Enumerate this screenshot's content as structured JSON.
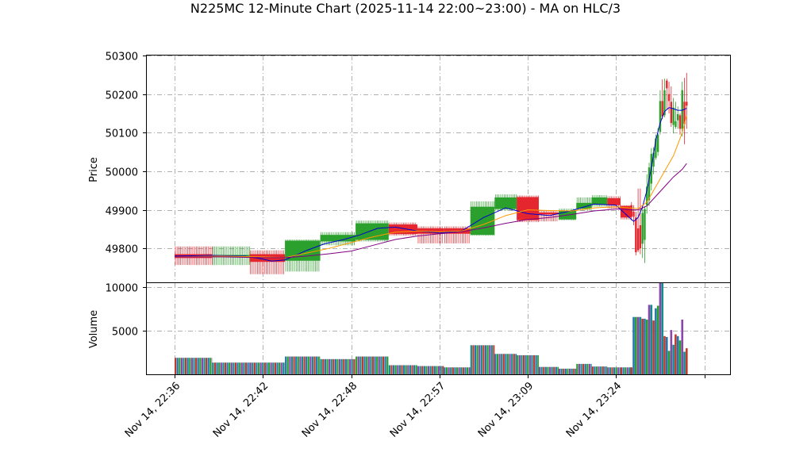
{
  "chart_data": {
    "type": "candlestick",
    "title": "N225MC 12-Minute Chart (2025-11-14 22:00~23:00) - MA on HLC/3",
    "price_panel": {
      "ylabel": "Price",
      "ylim": [
        49712,
        50300
      ],
      "yticks": [
        49800,
        49900,
        50000,
        50100,
        50200,
        50300
      ],
      "grid": true
    },
    "volume_panel": {
      "ylabel": "Volume",
      "ylim": [
        0,
        10500
      ],
      "yticks": [
        5000,
        10000
      ],
      "grid": true
    },
    "x_ticks": [
      {
        "label": "Nov 14, 22:36",
        "index": 0
      },
      {
        "label": "Nov 14, 22:42",
        "index": 20
      },
      {
        "label": "Nov 14, 22:48",
        "index": 40
      },
      {
        "label": "Nov 14, 22:57",
        "index": 60
      },
      {
        "label": "Nov 14, 23:09",
        "index": 80
      },
      {
        "label": "Nov 14, 23:24",
        "index": 100
      },
      {
        "label": "",
        "index": 120
      }
    ],
    "segments": [
      {
        "start": 0,
        "end": 8.5,
        "open": 49785,
        "close": 49775,
        "high": 49805,
        "low": 49757,
        "volume": 1900
      },
      {
        "start": 8.5,
        "end": 17,
        "open": 49777,
        "close": 49783,
        "high": 49805,
        "low": 49757,
        "volume": 1350
      },
      {
        "start": 17,
        "end": 25,
        "open": 49785,
        "close": 49765,
        "high": 49795,
        "low": 49733,
        "volume": 1350
      },
      {
        "start": 25,
        "end": 33,
        "open": 49768,
        "close": 49820,
        "high": 49823,
        "low": 49740,
        "volume": 2050
      },
      {
        "start": 33,
        "end": 41,
        "open": 49818,
        "close": 49835,
        "high": 49842,
        "low": 49808,
        "volume": 1750
      },
      {
        "start": 41,
        "end": 48.5,
        "open": 49822,
        "close": 49865,
        "high": 49872,
        "low": 49818,
        "volume": 2050
      },
      {
        "start": 48.5,
        "end": 55,
        "open": 49862,
        "close": 49837,
        "high": 49867,
        "low": 49833,
        "volume": 1050
      },
      {
        "start": 55,
        "end": 61,
        "open": 49852,
        "close": 49838,
        "high": 49857,
        "low": 49813,
        "volume": 950
      },
      {
        "start": 61,
        "end": 67,
        "open": 49852,
        "close": 49838,
        "high": 49857,
        "low": 49813,
        "volume": 800
      },
      {
        "start": 67,
        "end": 72.5,
        "open": 49835,
        "close": 49908,
        "high": 49922,
        "low": 49833,
        "volume": 3350
      },
      {
        "start": 72.5,
        "end": 77.5,
        "open": 49902,
        "close": 49932,
        "high": 49940,
        "low": 49898,
        "volume": 2350
      },
      {
        "start": 77.5,
        "end": 82.5,
        "open": 49933,
        "close": 49873,
        "high": 49937,
        "low": 49868,
        "volume": 2200
      },
      {
        "start": 82.5,
        "end": 87,
        "open": 49893,
        "close": 49888,
        "high": 49898,
        "low": 49870,
        "volume": 850
      },
      {
        "start": 87,
        "end": 91,
        "open": 49875,
        "close": 49898,
        "high": 49903,
        "low": 49873,
        "volume": 650
      },
      {
        "start": 91,
        "end": 94.5,
        "open": 49903,
        "close": 49918,
        "high": 49932,
        "low": 49898,
        "volume": 1200
      },
      {
        "start": 94.5,
        "end": 98,
        "open": 49913,
        "close": 49932,
        "high": 49938,
        "low": 49908,
        "volume": 900
      },
      {
        "start": 98,
        "end": 101,
        "open": 49930,
        "close": 49912,
        "high": 49935,
        "low": 49903,
        "volume": 800
      },
      {
        "start": 101,
        "end": 103.5,
        "open": 49910,
        "close": 49880,
        "high": 49912,
        "low": 49875,
        "volume": 800
      }
    ],
    "bars": [
      {
        "i": 103.5,
        "open": 49912,
        "close": 49882,
        "high": 49920,
        "low": 49872,
        "volume": 800
      },
      {
        "i": 104,
        "open": 49895,
        "close": 49882,
        "high": 49912,
        "low": 49860,
        "volume": 6600
      },
      {
        "i": 104.5,
        "open": 49880,
        "close": 49790,
        "high": 49895,
        "low": 49782,
        "volume": 6600
      },
      {
        "i": 105,
        "open": 49852,
        "close": 49795,
        "high": 49955,
        "low": 49790,
        "volume": 6600
      },
      {
        "i": 105.5,
        "open": 49860,
        "close": 49800,
        "high": 49955,
        "low": 49785,
        "volume": 6600
      },
      {
        "i": 106,
        "open": 49812,
        "close": 49892,
        "high": 49912,
        "low": 49775,
        "volume": 6400
      },
      {
        "i": 106.5,
        "open": 49822,
        "close": 49902,
        "high": 49910,
        "low": 49762,
        "volume": 6400
      },
      {
        "i": 107,
        "open": 49912,
        "close": 49960,
        "high": 49992,
        "low": 49890,
        "volume": 6300
      },
      {
        "i": 107.5,
        "open": 49925,
        "close": 50010,
        "high": 50022,
        "low": 49910,
        "volume": 8000
      },
      {
        "i": 108,
        "open": 49968,
        "close": 50045,
        "high": 50060,
        "low": 49950,
        "volume": 8000
      },
      {
        "i": 108.5,
        "open": 50012,
        "close": 50048,
        "high": 50062,
        "low": 49992,
        "volume": 6200
      },
      {
        "i": 109,
        "open": 50035,
        "close": 50085,
        "high": 50095,
        "low": 50030,
        "volume": 7600
      },
      {
        "i": 109.5,
        "open": 50050,
        "close": 50095,
        "high": 50112,
        "low": 50040,
        "volume": 7900
      },
      {
        "i": 110,
        "open": 50102,
        "close": 50182,
        "high": 50210,
        "low": 50095,
        "volume": 10500
      },
      {
        "i": 110.5,
        "open": 50182,
        "close": 50142,
        "high": 50238,
        "low": 50135,
        "volume": 10500
      },
      {
        "i": 111,
        "open": 50145,
        "close": 50210,
        "high": 50240,
        "low": 50140,
        "volume": 4400
      },
      {
        "i": 111.5,
        "open": 50235,
        "close": 50215,
        "high": 50240,
        "low": 50160,
        "volume": 4300
      },
      {
        "i": 112,
        "open": 50200,
        "close": 50182,
        "high": 50232,
        "low": 50150,
        "volume": 2700
      },
      {
        "i": 112.5,
        "open": 50180,
        "close": 50125,
        "high": 50220,
        "low": 50115,
        "volume": 5100
      },
      {
        "i": 113,
        "open": 50120,
        "close": 50165,
        "high": 50190,
        "low": 50098,
        "volume": 3400
      },
      {
        "i": 113.5,
        "open": 50115,
        "close": 50130,
        "high": 50180,
        "low": 50110,
        "volume": 4600
      },
      {
        "i": 114,
        "open": 50132,
        "close": 50148,
        "high": 50168,
        "low": 50110,
        "volume": 4400
      },
      {
        "i": 114.5,
        "open": 50145,
        "close": 50110,
        "high": 50150,
        "low": 50095,
        "volume": 3900
      },
      {
        "i": 115,
        "open": 50110,
        "close": 50210,
        "high": 50232,
        "low": 50090,
        "volume": 6300
      },
      {
        "i": 115.5,
        "open": 50180,
        "close": 50122,
        "high": 50242,
        "low": 50070,
        "volume": 2600
      },
      {
        "i": 116,
        "open": 50180,
        "close": 50170,
        "high": 50255,
        "low": 50110,
        "volume": 3000
      }
    ],
    "ma_fast": {
      "color": "#0000cc",
      "x": [
        0,
        8,
        16,
        20,
        22,
        25,
        28,
        30,
        34,
        38,
        42,
        46,
        50,
        55,
        60,
        65,
        70,
        75,
        80,
        85,
        90,
        95,
        100,
        103,
        104,
        105,
        106,
        107,
        108,
        109,
        110,
        111,
        112,
        113,
        114,
        115,
        116
      ],
      "y": [
        49780,
        49782,
        49780,
        49772,
        49767,
        49770,
        49785,
        49795,
        49812,
        49822,
        49835,
        49852,
        49855,
        49845,
        49840,
        49845,
        49880,
        49905,
        49890,
        49885,
        49898,
        49915,
        49912,
        49880,
        49870,
        49880,
        49908,
        49950,
        50010,
        50080,
        50125,
        50155,
        50165,
        50162,
        50158,
        50158,
        50163
      ]
    },
    "ma_mid": {
      "color": "#ff9900",
      "x": [
        0,
        10,
        20,
        25,
        30,
        35,
        40,
        45,
        50,
        55,
        60,
        65,
        70,
        75,
        80,
        85,
        90,
        95,
        100,
        103,
        105,
        107,
        109,
        111,
        113,
        114,
        115,
        116
      ],
      "y": [
        49778,
        49780,
        49778,
        49776,
        49788,
        49800,
        49815,
        49830,
        49842,
        49845,
        49843,
        49845,
        49862,
        49885,
        49900,
        49898,
        49897,
        49905,
        49908,
        49905,
        49903,
        49920,
        49960,
        50000,
        50040,
        50070,
        50100,
        50145
      ]
    },
    "ma_slow": {
      "color": "#800080",
      "x": [
        0,
        10,
        20,
        25,
        30,
        35,
        40,
        45,
        50,
        55,
        60,
        65,
        70,
        75,
        80,
        85,
        90,
        95,
        100,
        103,
        105,
        107,
        109,
        111,
        113,
        115,
        116
      ],
      "y": [
        49778,
        49778,
        49776,
        49776,
        49780,
        49786,
        49793,
        49808,
        49823,
        49832,
        49838,
        49843,
        49853,
        49865,
        49875,
        49880,
        49888,
        49897,
        49902,
        49900,
        49900,
        49910,
        49935,
        49960,
        49985,
        50005,
        50020
      ]
    }
  }
}
